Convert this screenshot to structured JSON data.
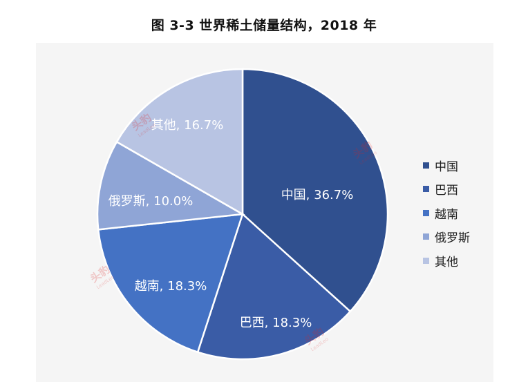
{
  "chart_data": {
    "type": "pie",
    "title": "图  3-3  世界稀土储量结构，2018 年",
    "slices": [
      {
        "label": "中国",
        "value": 36.7,
        "data_label": "中国, 36.7%",
        "color": "#30508f"
      },
      {
        "label": "巴西",
        "value": 18.3,
        "data_label": "巴西, 18.3%",
        "color": "#3a5ca6"
      },
      {
        "label": "越南",
        "value": 18.3,
        "data_label": "越南, 18.3%",
        "color": "#4472c4"
      },
      {
        "label": "俄罗斯",
        "value": 10.0,
        "data_label": "俄罗斯, 10.0%",
        "color": "#8fa5d6"
      },
      {
        "label": "其他",
        "value": 16.7,
        "data_label": "其他, 16.7%",
        "color": "#b8c4e3"
      }
    ],
    "legend": {
      "position": "right",
      "items": [
        "中国",
        "巴西",
        "越南",
        "俄罗斯",
        "其他"
      ]
    }
  },
  "watermark": {
    "text": "头豹",
    "subtext": "LeadLeo"
  }
}
